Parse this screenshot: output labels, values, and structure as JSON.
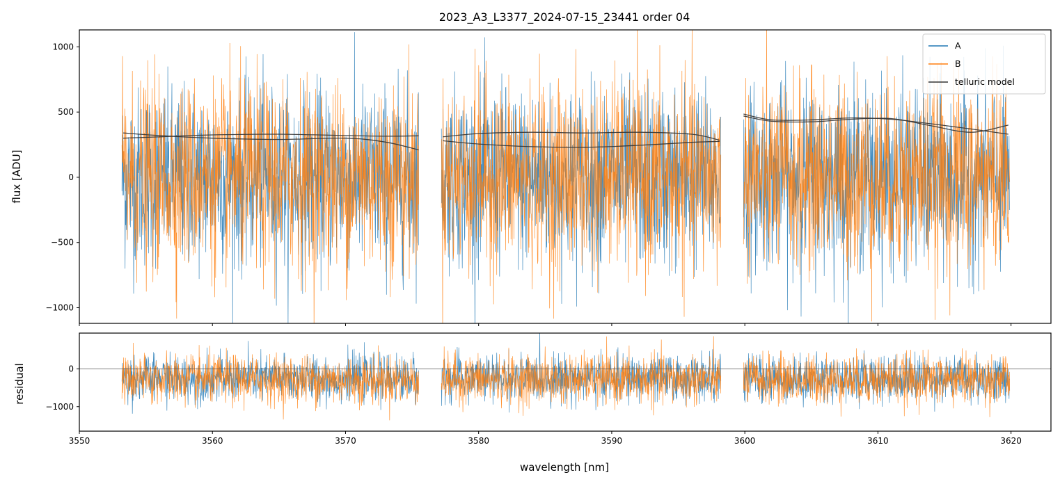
{
  "chart_data": [
    {
      "type": "line",
      "title": "2023_A3_L3377_2024-07-15_23441  order 04",
      "xlabel": "",
      "ylabel": "flux [ADU]",
      "xlim": [
        3550,
        3623
      ],
      "ylim": [
        -1120,
        1130
      ],
      "yticks": [
        -1000,
        -500,
        0,
        500,
        1000
      ],
      "ytick_labels": [
        "−1000",
        "−500",
        "0",
        "500",
        "1000"
      ],
      "xticks": [
        3550,
        3560,
        3570,
        3580,
        3590,
        3600,
        3610,
        3620
      ],
      "grid": false,
      "legend_position": "top-right",
      "segments": [
        [
          3553.2,
          3575.5
        ],
        [
          3577.2,
          3598.2
        ],
        [
          3599.9,
          3619.9
        ]
      ],
      "series": [
        {
          "name": "A",
          "color": "#1f77b4",
          "kind": "noisy",
          "mean": 0,
          "std": 340
        },
        {
          "name": "B",
          "color": "#ff7f0e",
          "kind": "noisy",
          "mean": 0,
          "std": 360
        },
        {
          "name": "telluric model",
          "color": "#333333",
          "kind": "smooth",
          "curves": [
            {
              "x": [
                3553.3,
                3556,
                3560,
                3565,
                3570,
                3573,
                3575.5
              ],
              "y": [
                340,
                320,
                300,
                290,
                300,
                270,
                210
              ]
            },
            {
              "x": [
                3553.3,
                3556,
                3560,
                3565,
                3570,
                3573,
                3575.5
              ],
              "y": [
                300,
                310,
                325,
                330,
                320,
                315,
                318
              ]
            },
            {
              "x": [
                3577.3,
                3580,
                3584,
                3588,
                3592,
                3596,
                3598.1
              ],
              "y": [
                310,
                335,
                345,
                340,
                345,
                330,
                285
              ]
            },
            {
              "x": [
                3577.3,
                3580,
                3584,
                3588,
                3592,
                3596,
                3598.1
              ],
              "y": [
                280,
                255,
                235,
                230,
                245,
                268,
                275
              ]
            },
            {
              "x": [
                3599.9,
                3602,
                3605,
                3608,
                3611,
                3614,
                3617,
                3619.8
              ],
              "y": [
                485,
                440,
                440,
                455,
                445,
                410,
                370,
                330
              ]
            },
            {
              "x": [
                3599.9,
                3602,
                3605,
                3608,
                3611,
                3614,
                3617,
                3619.8
              ],
              "y": [
                470,
                430,
                425,
                445,
                450,
                395,
                345,
                400
              ]
            }
          ]
        }
      ]
    },
    {
      "type": "line",
      "title": "",
      "xlabel": "wavelength [nm]",
      "ylabel": "residual",
      "xlim": [
        3550,
        3623
      ],
      "ylim": [
        -1650,
        950
      ],
      "yticks": [
        -1000,
        0
      ],
      "ytick_labels": [
        "−1000",
        "0"
      ],
      "xticks": [
        3550,
        3560,
        3570,
        3580,
        3590,
        3600,
        3610,
        3620
      ],
      "xtick_labels": [
        "3550",
        "3560",
        "3570",
        "3580",
        "3590",
        "3600",
        "3610",
        "3620"
      ],
      "grid": false,
      "reference_line_y": 0,
      "segments": [
        [
          3553.2,
          3575.5
        ],
        [
          3577.2,
          3598.2
        ],
        [
          3599.9,
          3619.9
        ]
      ],
      "series": [
        {
          "name": "A",
          "color": "#1f77b4",
          "kind": "noisy",
          "mean": -250,
          "std": 300
        },
        {
          "name": "B",
          "color": "#ff7f0e",
          "kind": "noisy",
          "mean": -280,
          "std": 320
        }
      ]
    }
  ]
}
